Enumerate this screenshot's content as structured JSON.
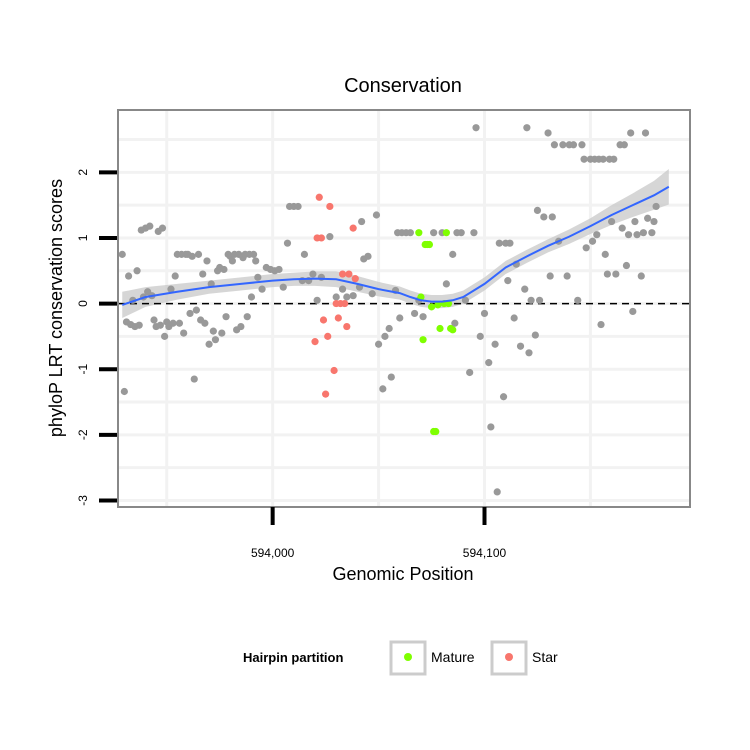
{
  "chart_data": {
    "type": "scatter",
    "title": "Conservation",
    "xlabel": "Genomic Position",
    "ylabel": "phyloP LRT conservation scores",
    "xlim": [
      593927,
      594197
    ],
    "ylim": [
      -3.1,
      2.95
    ],
    "x_ticks": [
      594000,
      594100
    ],
    "x_tick_labels": [
      "594,000",
      "594,100"
    ],
    "y_ticks": [
      -3,
      -2,
      -1,
      0,
      1,
      2
    ],
    "y_tick_labels": [
      "-3",
      "-2",
      "-1",
      "0",
      "1",
      "2"
    ],
    "reference_line": {
      "y": 0,
      "style": "dashed"
    },
    "colors": {
      "other": "#999999",
      "Mature": "#7FFF00",
      "Star": "#F8766D",
      "smooth": "#3366FF",
      "ribbon": "#C8C8C8",
      "panel_border": "#888888",
      "grid": "#F2F2F2"
    },
    "legend": {
      "title": "Hairpin partition",
      "position": "bottom",
      "entries": [
        {
          "label": "Mature",
          "color": "#7FFF00"
        },
        {
          "label": "Star",
          "color": "#F8766D"
        }
      ]
    },
    "smooth": {
      "x": [
        593929,
        593940,
        593955,
        593970,
        593985,
        594000,
        594010,
        594020,
        594030,
        594040,
        594050,
        594060,
        594065,
        594070,
        594075,
        594080,
        594085,
        594090,
        594100,
        594110,
        594120,
        594130,
        594140,
        594150,
        594160,
        594170,
        594180,
        594187
      ],
      "y": [
        -0.02,
        0.1,
        0.18,
        0.25,
        0.3,
        0.35,
        0.37,
        0.38,
        0.37,
        0.3,
        0.22,
        0.16,
        0.1,
        0.05,
        0.03,
        0.03,
        0.05,
        0.1,
        0.3,
        0.55,
        0.72,
        0.88,
        1.02,
        1.18,
        1.35,
        1.5,
        1.65,
        1.78
      ],
      "ci_half_width": [
        0.2,
        0.15,
        0.12,
        0.1,
        0.1,
        0.1,
        0.1,
        0.11,
        0.12,
        0.12,
        0.11,
        0.1,
        0.1,
        0.1,
        0.1,
        0.1,
        0.1,
        0.1,
        0.1,
        0.1,
        0.1,
        0.1,
        0.11,
        0.12,
        0.15,
        0.18,
        0.22,
        0.27
      ]
    },
    "series": [
      {
        "name": "Other",
        "points": [
          [
            593929,
            0.75
          ],
          [
            593930,
            -1.34
          ],
          [
            593931,
            -0.28
          ],
          [
            593932,
            0.42
          ],
          [
            593933,
            -0.32
          ],
          [
            593934,
            0.05
          ],
          [
            593935,
            -0.35
          ],
          [
            593936,
            0.5
          ],
          [
            593937,
            -0.33
          ],
          [
            593938,
            1.12
          ],
          [
            593939,
            0.1
          ],
          [
            593940,
            1.15
          ],
          [
            593941,
            0.18
          ],
          [
            593942,
            1.18
          ],
          [
            593943,
            0.12
          ],
          [
            593944,
            -0.25
          ],
          [
            593945,
            -0.35
          ],
          [
            593946,
            1.1
          ],
          [
            593947,
            -0.33
          ],
          [
            593948,
            1.15
          ],
          [
            593949,
            -0.5
          ],
          [
            593950,
            -0.28
          ],
          [
            593951,
            -0.35
          ],
          [
            593952,
            0.22
          ],
          [
            593953,
            -0.3
          ],
          [
            593954,
            0.42
          ],
          [
            593955,
            0.75
          ],
          [
            593956,
            -0.3
          ],
          [
            593957,
            0.75
          ],
          [
            593958,
            -0.45
          ],
          [
            593959,
            0.75
          ],
          [
            593960,
            0.75
          ],
          [
            593961,
            -0.15
          ],
          [
            593962,
            0.72
          ],
          [
            593963,
            -1.15
          ],
          [
            593964,
            -0.1
          ],
          [
            593965,
            0.75
          ],
          [
            593966,
            -0.25
          ],
          [
            593967,
            0.45
          ],
          [
            593968,
            -0.3
          ],
          [
            593969,
            0.65
          ],
          [
            593970,
            -0.62
          ],
          [
            593971,
            0.3
          ],
          [
            593972,
            -0.42
          ],
          [
            593973,
            -0.55
          ],
          [
            593974,
            0.5
          ],
          [
            593975,
            0.55
          ],
          [
            593976,
            -0.45
          ],
          [
            593977,
            0.52
          ],
          [
            593978,
            -0.2
          ],
          [
            593979,
            0.75
          ],
          [
            593980,
            0.72
          ],
          [
            593981,
            0.65
          ],
          [
            593982,
            0.75
          ],
          [
            593983,
            -0.4
          ],
          [
            593984,
            0.75
          ],
          [
            593985,
            -0.35
          ],
          [
            593986,
            0.7
          ],
          [
            593987,
            0.75
          ],
          [
            593988,
            -0.2
          ],
          [
            593989,
            0.75
          ],
          [
            593990,
            0.1
          ],
          [
            593991,
            0.75
          ],
          [
            593992,
            0.65
          ],
          [
            593993,
            0.4
          ],
          [
            593995,
            0.22
          ],
          [
            593997,
            0.55
          ],
          [
            593999,
            0.52
          ],
          [
            594001,
            0.5
          ],
          [
            594003,
            0.52
          ],
          [
            594005,
            0.25
          ],
          [
            594007,
            0.92
          ],
          [
            594008,
            1.48
          ],
          [
            594010,
            1.48
          ],
          [
            594012,
            1.48
          ],
          [
            594014,
            0.35
          ],
          [
            594015,
            0.75
          ],
          [
            594017,
            0.35
          ],
          [
            594019,
            0.45
          ],
          [
            594021,
            0.05
          ],
          [
            594023,
            0.4
          ],
          [
            594027,
            1.02
          ],
          [
            594030,
            0.1
          ],
          [
            594033,
            0.22
          ],
          [
            594035,
            0.1
          ],
          [
            594038,
            0.12
          ],
          [
            594041,
            0.25
          ],
          [
            594042,
            1.25
          ],
          [
            594043,
            0.68
          ],
          [
            594045,
            0.72
          ],
          [
            594047,
            0.15
          ],
          [
            594049,
            1.35
          ],
          [
            594050,
            -0.62
          ],
          [
            594052,
            -1.3
          ],
          [
            594053,
            -0.5
          ],
          [
            594055,
            -0.38
          ],
          [
            594056,
            -1.12
          ],
          [
            594058,
            0.2
          ],
          [
            594059,
            1.08
          ],
          [
            594060,
            -0.22
          ],
          [
            594061,
            1.08
          ],
          [
            594063,
            1.08
          ],
          [
            594065,
            1.08
          ],
          [
            594067,
            -0.15
          ],
          [
            594069,
            0.05
          ],
          [
            594071,
            -0.2
          ],
          [
            594076,
            1.08
          ],
          [
            594080,
            1.08
          ],
          [
            594082,
            0.3
          ],
          [
            594085,
            0.75
          ],
          [
            594086,
            -0.3
          ],
          [
            594087,
            1.08
          ],
          [
            594089,
            1.08
          ],
          [
            594091,
            0.05
          ],
          [
            594093,
            -1.05
          ],
          [
            594095,
            1.08
          ],
          [
            594096,
            2.68
          ],
          [
            594098,
            -0.5
          ],
          [
            594100,
            -0.15
          ],
          [
            594102,
            -0.9
          ],
          [
            594103,
            -1.88
          ],
          [
            594105,
            -0.62
          ],
          [
            594106,
            -2.87
          ],
          [
            594107,
            0.92
          ],
          [
            594109,
            -1.42
          ],
          [
            594110,
            0.92
          ],
          [
            594111,
            0.35
          ],
          [
            594112,
            0.92
          ],
          [
            594114,
            -0.22
          ],
          [
            594115,
            0.6
          ],
          [
            594117,
            -0.65
          ],
          [
            594119,
            0.22
          ],
          [
            594120,
            2.68
          ],
          [
            594121,
            -0.75
          ],
          [
            594122,
            0.05
          ],
          [
            594124,
            -0.48
          ],
          [
            594125,
            1.42
          ],
          [
            594126,
            0.05
          ],
          [
            594128,
            1.32
          ],
          [
            594130,
            2.6
          ],
          [
            594131,
            0.42
          ],
          [
            594132,
            1.32
          ],
          [
            594133,
            2.42
          ],
          [
            594135,
            0.95
          ],
          [
            594137,
            2.42
          ],
          [
            594139,
            0.42
          ],
          [
            594140,
            2.42
          ],
          [
            594142,
            2.42
          ],
          [
            594144,
            0.05
          ],
          [
            594146,
            2.42
          ],
          [
            594147,
            2.2
          ],
          [
            594148,
            0.85
          ],
          [
            594150,
            2.2
          ],
          [
            594151,
            0.95
          ],
          [
            594152,
            2.2
          ],
          [
            594153,
            1.05
          ],
          [
            594154,
            2.2
          ],
          [
            594155,
            -0.32
          ],
          [
            594156,
            2.2
          ],
          [
            594157,
            0.75
          ],
          [
            594158,
            0.45
          ],
          [
            594159,
            2.2
          ],
          [
            594160,
            1.25
          ],
          [
            594161,
            2.2
          ],
          [
            594162,
            0.45
          ],
          [
            594164,
            2.42
          ],
          [
            594165,
            1.15
          ],
          [
            594166,
            2.42
          ],
          [
            594167,
            0.58
          ],
          [
            594168,
            1.05
          ],
          [
            594169,
            2.6
          ],
          [
            594170,
            -0.12
          ],
          [
            594171,
            1.25
          ],
          [
            594172,
            1.05
          ],
          [
            594174,
            0.42
          ],
          [
            594175,
            1.08
          ],
          [
            594176,
            2.6
          ],
          [
            594177,
            1.3
          ],
          [
            594179,
            1.08
          ],
          [
            594180,
            1.25
          ],
          [
            594181,
            1.48
          ]
        ]
      },
      {
        "name": "Mature",
        "points": [
          [
            594069,
            1.08
          ],
          [
            594070,
            0.1
          ],
          [
            594071,
            -0.55
          ],
          [
            594072,
            0.9
          ],
          [
            594073,
            0.9
          ],
          [
            594074,
            0.9
          ],
          [
            594075,
            -0.05
          ],
          [
            594076,
            -1.95
          ],
          [
            594077,
            -1.95
          ],
          [
            594078,
            -0.02
          ],
          [
            594079,
            -0.38
          ],
          [
            594081,
            0.0
          ],
          [
            594082,
            1.08
          ],
          [
            594083,
            0.0
          ],
          [
            594084,
            -0.38
          ],
          [
            594085,
            -0.4
          ]
        ]
      },
      {
        "name": "Star",
        "points": [
          [
            594020,
            -0.58
          ],
          [
            594021,
            1.0
          ],
          [
            594022,
            1.62
          ],
          [
            594023,
            1.0
          ],
          [
            594024,
            -0.25
          ],
          [
            594025,
            -1.38
          ],
          [
            594026,
            -0.5
          ],
          [
            594027,
            1.48
          ],
          [
            594029,
            -1.02
          ],
          [
            594030,
            0.0
          ],
          [
            594031,
            -0.22
          ],
          [
            594032,
            0.0
          ],
          [
            594033,
            0.45
          ],
          [
            594034,
            0.0
          ],
          [
            594035,
            -0.35
          ],
          [
            594036,
            0.45
          ],
          [
            594038,
            1.15
          ],
          [
            594039,
            0.38
          ]
        ]
      }
    ]
  }
}
